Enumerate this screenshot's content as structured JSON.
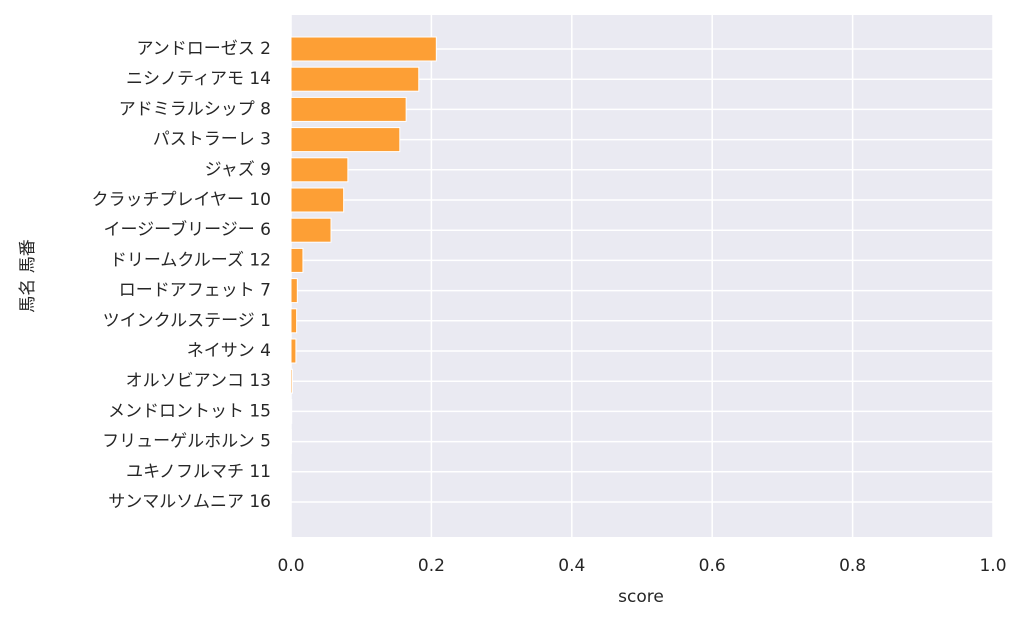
{
  "chart_data": {
    "type": "barh",
    "categories": [
      "アンドローゼス 2",
      "ニシノティアモ 14",
      "アドミラルシップ 8",
      "パストラーレ 3",
      "ジャズ 9",
      "クラッチプレイヤー 10",
      "イージーブリージー 6",
      "ドリームクルーズ 12",
      "ロードアフェット 7",
      "ツインクルステージ 1",
      "ネイサン 4",
      "オルソビアンコ 13",
      "メンドロントット 15",
      "フリューゲルホルン 5",
      "ユキノフルマチ 11",
      "サンマルソムニア 16"
    ],
    "values": [
      0.207,
      0.182,
      0.164,
      0.155,
      0.081,
      0.075,
      0.057,
      0.017,
      0.009,
      0.008,
      0.007,
      0.002,
      0.001,
      0.0005,
      0,
      0
    ],
    "color": "#fd9f35",
    "xlabel": "score",
    "ylabel": "馬名 馬番",
    "xlim": [
      0,
      1
    ],
    "xticks": [
      {
        "value": 0,
        "label": "0.0"
      },
      0.2,
      0.4,
      0.6,
      0.8,
      {
        "value": 1,
        "label": "1.0"
      }
    ],
    "grid": true
  }
}
